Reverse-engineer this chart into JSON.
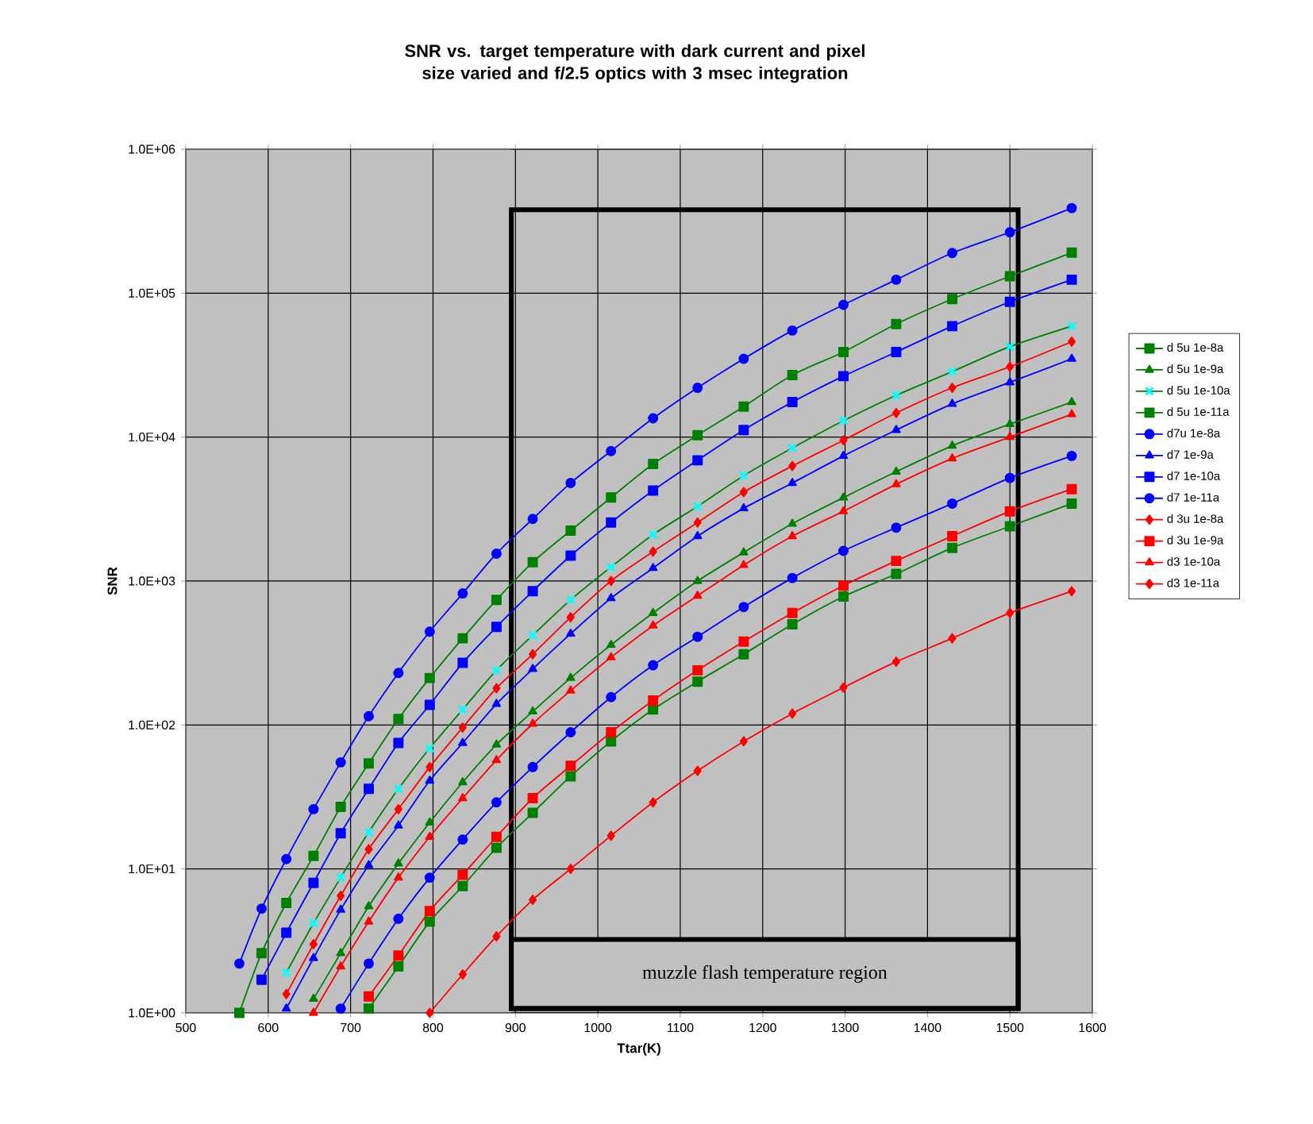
{
  "chart_data": {
    "type": "line",
    "title": "SNR vs. target temperature with dark current and pixel size varied and f/2.5 optics with 3 msec integration",
    "xlabel": "Ttar(K)",
    "ylabel": "SNR",
    "x": [
      565,
      592,
      622,
      655,
      688,
      722,
      758,
      796,
      836,
      877,
      921,
      967,
      1016,
      1067,
      1121,
      1177,
      1236,
      1298,
      1362,
      1430,
      1500,
      1575
    ],
    "series": [
      {
        "name": "d 5u 1e-8a",
        "color": "#008000",
        "marker": "square",
        "values": [
          null,
          null,
          null,
          null,
          null,
          1.07,
          2.1,
          4.3,
          7.6,
          14,
          24.5,
          44,
          77,
          128,
          200,
          310,
          500,
          780,
          1120,
          1700,
          2400,
          3450
        ]
      },
      {
        "name": "d 5u 1e-9a",
        "color": "#008000",
        "marker": "triangle",
        "values": [
          null,
          null,
          null,
          1.25,
          2.6,
          5.5,
          10.9,
          21,
          40,
          73,
          124,
          212,
          360,
          600,
          1000,
          1580,
          2500,
          3800,
          5750,
          8700,
          12300,
          17500
        ]
      },
      {
        "name": "d 5u 1e-10a",
        "color": "#008000",
        "marker": "cross",
        "values": [
          null,
          null,
          1.9,
          4.2,
          8.7,
          18,
          36,
          69,
          128,
          240,
          420,
          740,
          1250,
          2100,
          3300,
          5400,
          8400,
          13000,
          19500,
          28500,
          42500,
          59000
        ]
      },
      {
        "name": "d 5u 1e-11a",
        "color": "#008000",
        "marker": "square",
        "values": [
          1.0,
          2.6,
          5.8,
          12.3,
          27,
          54,
          110,
          212,
          400,
          740,
          1350,
          2240,
          3800,
          6500,
          10300,
          16300,
          27000,
          39000,
          61000,
          91000,
          131000,
          191000
        ]
      },
      {
        "name": "d7u 1e-8a",
        "color": "#0000ff",
        "marker": "circle",
        "values": [
          null,
          null,
          null,
          null,
          1.07,
          2.2,
          4.5,
          8.7,
          16,
          29,
          51,
          89,
          156,
          260,
          410,
          660,
          1050,
          1620,
          2350,
          3450,
          5200,
          7400
        ]
      },
      {
        "name": "d7 1e-9a",
        "color": "#0000ff",
        "marker": "triangle",
        "values": [
          null,
          null,
          1.07,
          2.4,
          5.2,
          10.6,
          20,
          41,
          75,
          140,
          245,
          430,
          760,
          1230,
          2050,
          3200,
          4800,
          7400,
          11200,
          17000,
          24000,
          35000
        ]
      },
      {
        "name": "d7 1e-10a",
        "color": "#0000ff",
        "marker": "square",
        "values": [
          null,
          1.7,
          3.6,
          8,
          17.7,
          36,
          75,
          138,
          270,
          480,
          850,
          1500,
          2550,
          4250,
          6900,
          11200,
          17500,
          26500,
          39000,
          59000,
          87000,
          124000
        ]
      },
      {
        "name": "d7 1e-11a",
        "color": "#0000ff",
        "marker": "circle",
        "values": [
          2.2,
          5.3,
          11.7,
          26,
          55,
          115,
          230,
          445,
          820,
          1550,
          2700,
          4800,
          8000,
          13500,
          22000,
          35000,
          55000,
          83000,
          124000,
          190000,
          265000,
          390000
        ]
      },
      {
        "name": "d 3u 1e-8a",
        "color": "#ff0000",
        "marker": "diamond",
        "values": [
          null,
          null,
          null,
          null,
          null,
          null,
          null,
          1.0,
          1.85,
          3.4,
          6.1,
          10,
          17,
          29,
          48,
          77,
          120,
          182,
          275,
          400,
          600,
          850
        ]
      },
      {
        "name": "d 3u 1e-9a",
        "color": "#ff0000",
        "marker": "square",
        "values": [
          null,
          null,
          null,
          null,
          null,
          1.3,
          2.5,
          5.1,
          9.1,
          16.7,
          31,
          52,
          89,
          148,
          240,
          380,
          600,
          930,
          1380,
          2050,
          3050,
          4350
        ]
      },
      {
        "name": "d3 1e-10a",
        "color": "#ff0000",
        "marker": "triangle",
        "values": [
          null,
          null,
          null,
          1.0,
          2.1,
          4.3,
          8.7,
          16.7,
          31,
          57,
          102,
          173,
          295,
          490,
          790,
          1290,
          2050,
          3050,
          4700,
          7100,
          10000,
          14400
        ]
      },
      {
        "name": "d3 1e-11a",
        "color": "#ff0000",
        "marker": "diamond",
        "values": [
          null,
          null,
          1.35,
          3.0,
          6.5,
          13.7,
          26,
          51,
          96,
          180,
          310,
          560,
          1000,
          1600,
          2550,
          4150,
          6300,
          9500,
          14700,
          22000,
          30800,
          46000
        ]
      }
    ],
    "xlim": [
      500,
      1600
    ],
    "xticks": [
      500,
      600,
      700,
      800,
      900,
      1000,
      1100,
      1200,
      1300,
      1400,
      1500,
      1600
    ],
    "ylim": [
      1,
      1000000
    ],
    "log": "y",
    "yticks": [
      {
        "value": 1,
        "label": "1.0E+00"
      },
      {
        "value": 10,
        "label": "1.0E+01"
      },
      {
        "value": 100,
        "label": "1.0E+02"
      },
      {
        "value": 1000,
        "label": "1.0E+03"
      },
      {
        "value": 10000,
        "label": "1.0E+04"
      },
      {
        "value": 100000,
        "label": "1.0E+05"
      },
      {
        "value": 1000000,
        "label": "1.0E+06"
      }
    ],
    "bands": [
      {
        "axis": "x",
        "from": 895,
        "to": 1510,
        "label": "muzzle flash temperature region",
        "color": "#c0c0c0"
      }
    ],
    "grid": true,
    "legend": "right",
    "line_style": "solid"
  }
}
